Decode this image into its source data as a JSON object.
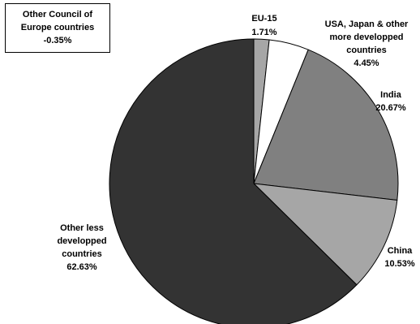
{
  "chart_data": {
    "type": "pie",
    "title": "",
    "slices": [
      {
        "name": "EU-15",
        "value": 1.71,
        "value_label": "1.71%",
        "color": "#a6a6a6"
      },
      {
        "name": "USA, Japan & other more developped countries",
        "value": 4.45,
        "value_label": "4.45%",
        "color": "#ffffff"
      },
      {
        "name": "India",
        "value": 20.67,
        "value_label": "20.67%",
        "color": "#808080"
      },
      {
        "name": "China",
        "value": 10.53,
        "value_label": "10.53%",
        "color": "#a6a6a6"
      },
      {
        "name": "Other less developped countries",
        "value": 62.63,
        "value_label": "62.63%",
        "color": "#333333"
      },
      {
        "name": "Other Council of Europe countries",
        "value": -0.35,
        "value_label": "-0.35%",
        "color": ""
      }
    ],
    "start_angle": "12 o'clock",
    "direction": "clockwise",
    "slice_outline_color": "#000000"
  },
  "labels": {
    "eu15": {
      "line1": "EU-15",
      "line2": "1.71%"
    },
    "usa": {
      "line1": "USA, Japan & other",
      "line2": "more developped",
      "line3": "countries",
      "line4": "4.45%"
    },
    "india": {
      "line1": "India",
      "line2": "20.67%"
    },
    "china": {
      "line1": "China",
      "line2": "10.53%"
    },
    "other_less": {
      "line1": "Other less",
      "line2": "developped",
      "line3": "countries",
      "line4": "62.63%"
    },
    "council": {
      "line1": "Other Council of",
      "line2": "Europe countries",
      "line3": "-0.35%"
    }
  }
}
